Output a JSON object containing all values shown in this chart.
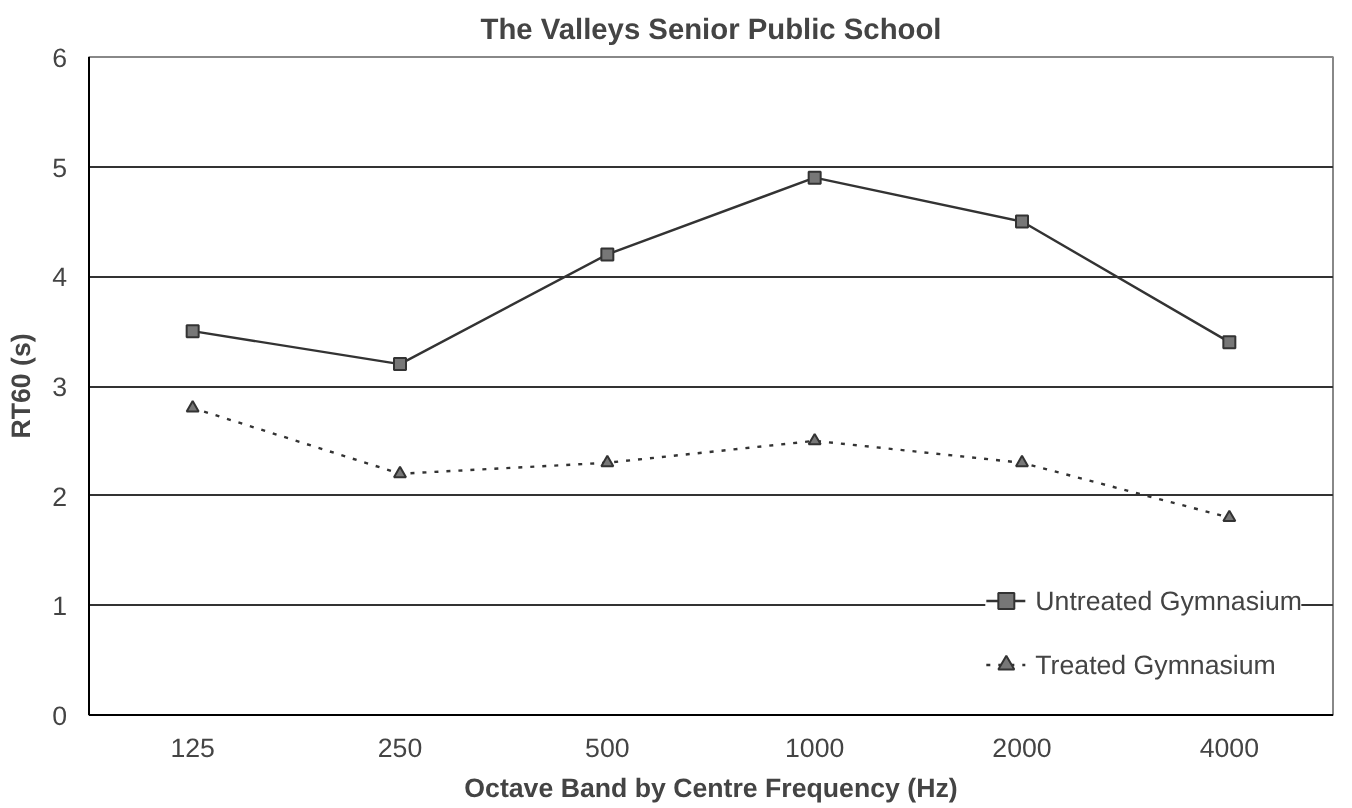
{
  "chart_data": {
    "type": "line",
    "title": "The Valleys Senior Public School",
    "xlabel": "Octave Band by Centre Frequency (Hz)",
    "ylabel": "RT60 (s)",
    "categories": [
      "125",
      "250",
      "500",
      "1000",
      "2000",
      "4000"
    ],
    "series": [
      {
        "name": "Untreated Gymnasium",
        "color": "#333333",
        "marker": "square",
        "line_style": "solid",
        "values": [
          3.5,
          3.2,
          4.2,
          4.9,
          4.5,
          3.4
        ]
      },
      {
        "name": "Treated Gymnasium",
        "color": "#333333",
        "marker": "triangle",
        "line_style": "dotted",
        "values": [
          2.8,
          2.2,
          2.3,
          2.5,
          2.3,
          1.8
        ]
      }
    ],
    "ylim": [
      0,
      6
    ],
    "yticks": [
      0,
      1,
      2,
      3,
      4,
      5,
      6
    ],
    "grid": "y",
    "legend": "bottom right"
  }
}
